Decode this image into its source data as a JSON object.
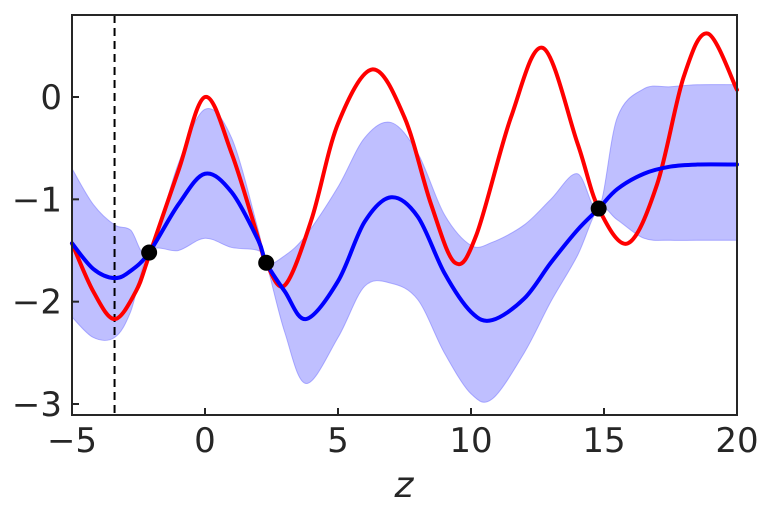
{
  "chart_data": {
    "type": "line",
    "title": "",
    "xlabel": "z",
    "ylabel": "",
    "xlim": [
      -5,
      20
    ],
    "ylim": [
      -3.05,
      0.8
    ],
    "x_ticks": [
      "−5",
      "0",
      "5",
      "10",
      "15",
      "20"
    ],
    "y_ticks": [
      "0",
      "−1",
      "−2",
      "−3"
    ],
    "grid": false,
    "legend": "none",
    "vline_x": -3.4,
    "series": [
      {
        "role": "true-function",
        "color": "#ff0000",
        "x": [
          -5,
          -4.2,
          -3.4,
          -2.6,
          -2.1,
          -1.0,
          0,
          1.0,
          2.0,
          2.3,
          3.0,
          4.0,
          5.0,
          6.3,
          7.5,
          8.5,
          9.4,
          10.2,
          11.5,
          12.7,
          14.0,
          14.8,
          15.9,
          17.0,
          18.0,
          18.9,
          20
        ],
        "y": [
          -1.43,
          -1.9,
          -2.17,
          -1.9,
          -1.55,
          -0.72,
          0,
          -0.55,
          -1.38,
          -1.62,
          -1.84,
          -1.2,
          -0.26,
          0.27,
          -0.2,
          -1.05,
          -1.62,
          -1.35,
          -0.2,
          0.48,
          -0.45,
          -1.09,
          -1.43,
          -0.85,
          0.2,
          0.62,
          0.07
        ]
      },
      {
        "role": "posterior-mean",
        "color": "#0000ff",
        "x": [
          -5,
          -4.2,
          -3.4,
          -2.8,
          -2.1,
          -1.0,
          0,
          1.0,
          2.0,
          2.3,
          3.0,
          3.8,
          5.0,
          6.0,
          7.0,
          8.0,
          9.0,
          10.0,
          10.8,
          12.0,
          13.0,
          14.0,
          14.8,
          15.5,
          16.5,
          17.5,
          18.5,
          20
        ],
        "y": [
          -1.43,
          -1.68,
          -1.77,
          -1.7,
          -1.52,
          -1.05,
          -0.75,
          -0.93,
          -1.4,
          -1.62,
          -1.9,
          -2.17,
          -1.8,
          -1.22,
          -0.98,
          -1.17,
          -1.72,
          -2.1,
          -2.18,
          -1.97,
          -1.62,
          -1.3,
          -1.09,
          -0.9,
          -0.75,
          -0.68,
          -0.66,
          -0.66
        ]
      }
    ],
    "confidence_band": {
      "color": "#8080ff",
      "x": [
        -5,
        -4.2,
        -3.4,
        -2.8,
        -2.1,
        -1.0,
        0,
        1.0,
        2.0,
        2.3,
        3.0,
        3.8,
        5.0,
        6.0,
        7.0,
        8.0,
        9.0,
        10.0,
        10.8,
        12.0,
        13.0,
        14.0,
        14.8,
        15.5,
        16.5,
        17.5,
        18.5,
        20
      ],
      "lower": [
        -2.15,
        -2.35,
        -2.35,
        -2.1,
        -1.52,
        -1.5,
        -1.38,
        -1.47,
        -1.5,
        -1.62,
        -2.3,
        -2.8,
        -2.35,
        -1.85,
        -1.82,
        -1.98,
        -2.5,
        -2.9,
        -2.95,
        -2.5,
        -2.0,
        -1.55,
        -1.09,
        -1.2,
        -1.38,
        -1.4,
        -1.4,
        -1.4
      ],
      "upper": [
        -0.7,
        -1.05,
        -1.25,
        -1.3,
        -1.52,
        -0.65,
        -0.12,
        -0.4,
        -1.3,
        -1.62,
        -1.55,
        -1.35,
        -0.88,
        -0.4,
        -0.25,
        -0.55,
        -1.15,
        -1.45,
        -1.42,
        -1.25,
        -1.0,
        -0.75,
        -1.09,
        -0.2,
        0.08,
        0.1,
        0.12,
        0.12
      ]
    },
    "observations": {
      "color": "#000000",
      "x": [
        -2.1,
        2.3,
        14.8
      ],
      "y": [
        -1.52,
        -1.62,
        -1.09
      ]
    }
  }
}
